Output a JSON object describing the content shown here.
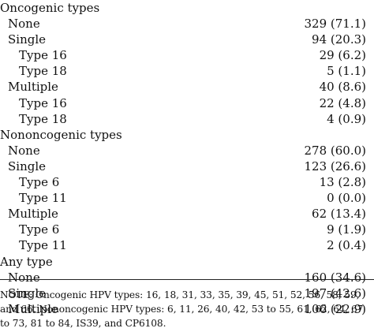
{
  "rows": [
    {
      "label": "Oncogenic types",
      "value": "",
      "level": 0
    },
    {
      "label": "None",
      "value": "329 (71.1)",
      "level": 1
    },
    {
      "label": "Single",
      "value": "94 (20.3)",
      "level": 1
    },
    {
      "label": "Type 16",
      "value": "29 (6.2)",
      "level": 2
    },
    {
      "label": "Type 18",
      "value": "5 (1.1)",
      "level": 2
    },
    {
      "label": "Multiple",
      "value": "40 (8.6)",
      "level": 1
    },
    {
      "label": "Type 16",
      "value": "22 (4.8)",
      "level": 2
    },
    {
      "label": "Type 18",
      "value": "4 (0.9)",
      "level": 2
    },
    {
      "label": "Nononcogenic types",
      "value": "",
      "level": 0
    },
    {
      "label": "None",
      "value": "278 (60.0)",
      "level": 1
    },
    {
      "label": "Single",
      "value": "123 (26.6)",
      "level": 1
    },
    {
      "label": "Type 6",
      "value": "13 (2.8)",
      "level": 2
    },
    {
      "label": "Type 11",
      "value": "0 (0.0)",
      "level": 2
    },
    {
      "label": "Multiple",
      "value": "62 (13.4)",
      "level": 1
    },
    {
      "label": "Type 6",
      "value": "9 (1.9)",
      "level": 2
    },
    {
      "label": "Type 11",
      "value": "2 (0.4)",
      "level": 2
    },
    {
      "label": "Any type",
      "value": "",
      "level": 0
    },
    {
      "label": "None",
      "value": "160 (34.6)",
      "level": 1
    },
    {
      "label": "Single",
      "value": "197 (42.6)",
      "level": 1
    },
    {
      "label": "Multiple",
      "value": "106 (22.9)",
      "level": 1
    }
  ],
  "note": {
    "lines": [
      "NOTE: Oncogenic HPV types: 16, 18, 31, 33, 35, 39, 45, 51, 52, 56, 58, 59,",
      "and 66. Nononcogenic HPV types: 6, 11, 26, 40, 42, 53 to 55, 61, 62, 64, 67",
      "to 73, 81 to 84, IS39, and CP6108."
    ]
  }
}
